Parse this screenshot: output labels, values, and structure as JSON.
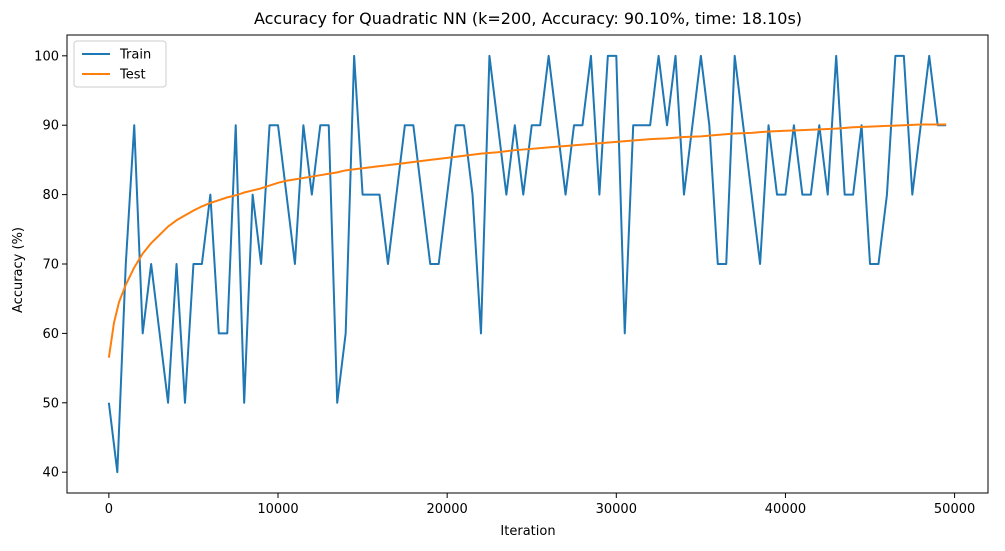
{
  "chart_data": {
    "type": "line",
    "title": "Accuracy for Quadratic NN (k=200, Accuracy: 90.10%, time: 18.10s)",
    "xlabel": "Iteration",
    "ylabel": "Accuracy (%)",
    "xlim": [
      -2475,
      51975
    ],
    "ylim": [
      37,
      103
    ],
    "xticks": [
      0,
      10000,
      20000,
      30000,
      40000,
      50000
    ],
    "xtick_labels": [
      "0",
      "10000",
      "20000",
      "30000",
      "40000",
      "50000"
    ],
    "yticks": [
      40,
      50,
      60,
      70,
      80,
      90,
      100
    ],
    "ytick_labels": [
      "40",
      "50",
      "60",
      "70",
      "80",
      "90",
      "100"
    ],
    "grid": false,
    "legend_position": "upper-left",
    "series": [
      {
        "name": "Train",
        "color": "#1f77b4",
        "x": [
          0,
          500,
          1000,
          1500,
          2000,
          2500,
          3000,
          3500,
          4000,
          4500,
          5000,
          5500,
          6000,
          6500,
          7000,
          7500,
          8000,
          8500,
          9000,
          9500,
          10000,
          10500,
          11000,
          11500,
          12000,
          12500,
          13000,
          13500,
          14000,
          14500,
          15000,
          15500,
          16000,
          16500,
          17000,
          17500,
          18000,
          18500,
          19000,
          19500,
          20000,
          20500,
          21000,
          21500,
          22000,
          22500,
          23000,
          23500,
          24000,
          24500,
          25000,
          25500,
          26000,
          26500,
          27000,
          27500,
          28000,
          28500,
          29000,
          29500,
          30000,
          30500,
          31000,
          31500,
          32000,
          32500,
          33000,
          33500,
          34000,
          34500,
          35000,
          35500,
          36000,
          36500,
          37000,
          37500,
          38000,
          38500,
          39000,
          39500,
          40000,
          40500,
          41000,
          41500,
          42000,
          42500,
          43000,
          43500,
          44000,
          44500,
          45000,
          45500,
          46000,
          46500,
          47000,
          47500,
          48000,
          48500,
          49000,
          49500
        ],
        "y": [
          50,
          40,
          70,
          90,
          60,
          70,
          60,
          50,
          70,
          50,
          70,
          70,
          80,
          60,
          60,
          90,
          50,
          80,
          70,
          90,
          90,
          80,
          70,
          90,
          80,
          90,
          90,
          50,
          60,
          100,
          80,
          80,
          80,
          70,
          80,
          90,
          90,
          80,
          70,
          70,
          80,
          90,
          90,
          80,
          60,
          100,
          90,
          80,
          90,
          80,
          90,
          90,
          100,
          90,
          80,
          90,
          90,
          100,
          80,
          100,
          100,
          60,
          90,
          90,
          90,
          100,
          90,
          100,
          80,
          90,
          100,
          90,
          70,
          70,
          100,
          90,
          80,
          70,
          90,
          80,
          80,
          90,
          80,
          80,
          90,
          80,
          100,
          80,
          80,
          90,
          70,
          70,
          80,
          100,
          100,
          80,
          90,
          100,
          90,
          90
        ]
      },
      {
        "name": "Test",
        "color": "#ff7f0e",
        "x": [
          0,
          300,
          600,
          1000,
          1500,
          2000,
          2500,
          3000,
          3500,
          4000,
          4500,
          5000,
          5500,
          6000,
          6500,
          7000,
          7500,
          8000,
          8500,
          9000,
          9500,
          10000,
          10500,
          11000,
          11500,
          12000,
          12500,
          13000,
          13500,
          14000,
          15000,
          16000,
          17000,
          18000,
          19000,
          20000,
          21000,
          22000,
          23000,
          24000,
          25000,
          26000,
          27000,
          28000,
          29000,
          30000,
          31000,
          32000,
          33000,
          34000,
          35000,
          36000,
          37000,
          38000,
          39000,
          40000,
          41000,
          42000,
          43000,
          44000,
          45000,
          46000,
          47000,
          48000,
          49000,
          49500
        ],
        "y": [
          56.5,
          61.5,
          64.5,
          67,
          69.5,
          71.5,
          73,
          74.2,
          75.4,
          76.3,
          77,
          77.7,
          78.3,
          78.8,
          79.2,
          79.6,
          79.9,
          80.3,
          80.6,
          80.9,
          81.3,
          81.7,
          82,
          82.2,
          82.4,
          82.6,
          82.8,
          83,
          83.2,
          83.5,
          83.8,
          84.1,
          84.4,
          84.7,
          85,
          85.3,
          85.6,
          85.9,
          86.1,
          86.4,
          86.6,
          86.8,
          87,
          87.2,
          87.4,
          87.6,
          87.8,
          88,
          88.1,
          88.3,
          88.4,
          88.6,
          88.8,
          88.9,
          89.1,
          89.2,
          89.3,
          89.4,
          89.5,
          89.7,
          89.8,
          89.9,
          90,
          90.1,
          90.1,
          90.1
        ]
      }
    ]
  }
}
